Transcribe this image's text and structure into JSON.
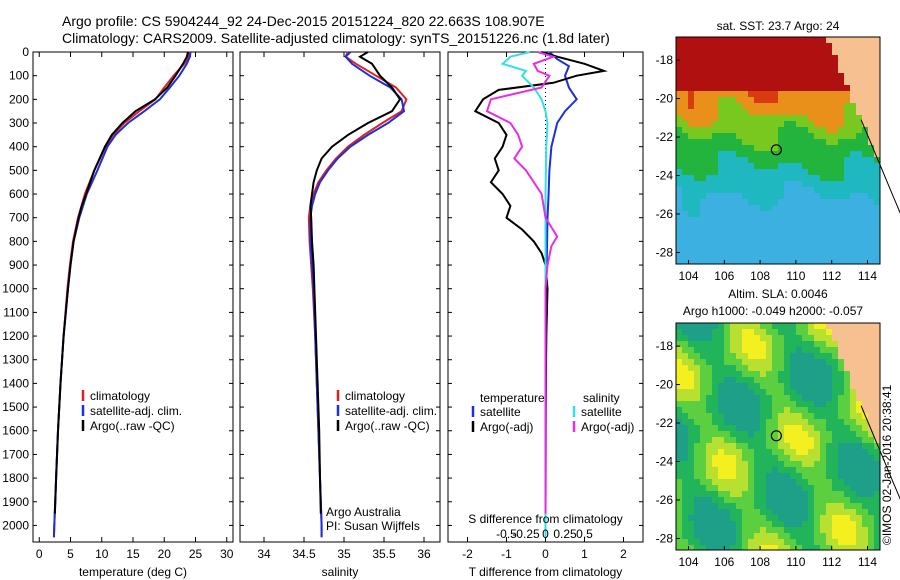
{
  "header": {
    "line1": "Argo profile: CS 5904244_92 24-Dec-2015 20151224_820 22.663S 108.907E",
    "line2": "Climatology: CARS2009. Satellite-adjusted climatology: synTS_20151226.nc (1.8d later)"
  },
  "footer_stamp": "©IMOS 02-Jan-2016 20:38:41",
  "colors": {
    "climatology": "#e02020",
    "satellite": "#1a2fe0",
    "argo": "#000000",
    "sal_satellite": "#33e0e8",
    "sal_argo": "#e62ee6"
  },
  "chart_data": [
    {
      "type": "line",
      "name": "temperature-profile",
      "xlabel": "temperature (deg C)",
      "xlim": [
        -1,
        31
      ],
      "ylim": [
        2070,
        0
      ],
      "xticks": [
        0,
        5,
        10,
        15,
        20,
        25,
        30
      ],
      "xtick_labels": [
        "0",
        "5",
        "10",
        "15",
        "20",
        "25",
        "30"
      ],
      "yticks": [
        0,
        100,
        200,
        300,
        400,
        500,
        600,
        700,
        800,
        900,
        1000,
        1100,
        1200,
        1300,
        1400,
        1500,
        1600,
        1700,
        1800,
        1900,
        2000
      ],
      "ytick_labels": [
        "0",
        "100",
        "200",
        "300",
        "400",
        "500",
        "600",
        "700",
        "800",
        "900",
        "1000",
        "1100",
        "1200",
        "1300",
        "1400",
        "1500",
        "1600",
        "1700",
        "1800",
        "1900",
        "2000"
      ],
      "legend": [
        "climatology",
        "satellite-adj. clim.",
        "Argo(..raw -QC)"
      ],
      "series": [
        {
          "key": "climatology",
          "depth": [
            0,
            20,
            50,
            100,
            150,
            200,
            250,
            300,
            350,
            400,
            500,
            600,
            700,
            800,
            900,
            1000,
            1200,
            1400,
            1600,
            1800,
            2000,
            2050
          ],
          "values": [
            24.0,
            23.9,
            23.2,
            21.5,
            20.0,
            18.6,
            16.0,
            13.6,
            11.8,
            10.6,
            8.8,
            7.3,
            6.2,
            5.4,
            4.9,
            4.5,
            3.9,
            3.4,
            3.0,
            2.7,
            2.4,
            2.35
          ]
        },
        {
          "key": "satellite",
          "depth": [
            0,
            20,
            50,
            100,
            150,
            200,
            250,
            300,
            350,
            400,
            500,
            600,
            700,
            800,
            900,
            1000,
            1200,
            1400,
            1600,
            1800,
            2000,
            2050
          ],
          "values": [
            24.2,
            24.1,
            23.6,
            22.4,
            20.9,
            19.3,
            16.8,
            14.2,
            12.2,
            10.9,
            9.3,
            7.6,
            6.4,
            5.5,
            5.0,
            4.6,
            3.9,
            3.4,
            3.0,
            2.7,
            2.4,
            2.35
          ]
        },
        {
          "key": "argo",
          "depth": [
            0,
            20,
            50,
            100,
            150,
            200,
            250,
            300,
            350,
            400,
            500,
            600,
            650,
            700,
            800,
            900,
            1000,
            1200,
            1400,
            1600,
            1800,
            1950
          ],
          "values": [
            23.8,
            23.6,
            23.0,
            21.8,
            20.5,
            18.5,
            15.4,
            13.3,
            11.6,
            10.5,
            8.8,
            7.5,
            6.8,
            6.3,
            5.5,
            5.0,
            4.6,
            3.9,
            3.4,
            3.0,
            2.7,
            2.5
          ]
        }
      ]
    },
    {
      "type": "line",
      "name": "salinity-profile",
      "xlabel": "salinity",
      "xlim": [
        33.7,
        36.2
      ],
      "ylim": [
        2070,
        0
      ],
      "xticks": [
        34,
        34.5,
        35,
        35.5,
        36
      ],
      "xtick_labels": [
        "34",
        "34.5",
        "35",
        "35.5",
        "36"
      ],
      "legend": [
        "climatology",
        "satellite-adj. clim.",
        "Argo(..raw -QC)"
      ],
      "annotation": [
        "Argo Australia",
        "PI: Susan Wijffels"
      ],
      "series": [
        {
          "key": "climatology",
          "depth": [
            0,
            20,
            50,
            100,
            150,
            200,
            250,
            300,
            350,
            400,
            450,
            500,
            550,
            600,
            650,
            700,
            800,
            900,
            1000,
            1200,
            1400,
            1600,
            1800,
            2000,
            2050
          ],
          "values": [
            35.05,
            35.02,
            35.15,
            35.4,
            35.65,
            35.78,
            35.72,
            35.48,
            35.25,
            35.05,
            34.9,
            34.78,
            34.68,
            34.62,
            34.58,
            34.56,
            34.57,
            34.59,
            34.61,
            34.64,
            34.66,
            34.68,
            34.7,
            34.72,
            34.72
          ]
        },
        {
          "key": "satellite",
          "depth": [
            0,
            20,
            50,
            100,
            150,
            200,
            250,
            300,
            350,
            400,
            450,
            500,
            550,
            600,
            650,
            700,
            800,
            900,
            1000,
            1200,
            1400,
            1600,
            1800,
            2000,
            2050
          ],
          "values": [
            35.08,
            35.02,
            35.1,
            35.32,
            35.58,
            35.72,
            35.75,
            35.55,
            35.3,
            35.08,
            34.92,
            34.8,
            34.7,
            34.64,
            34.6,
            34.58,
            34.58,
            34.6,
            34.62,
            34.64,
            34.66,
            34.68,
            34.7,
            34.72,
            34.72
          ]
        },
        {
          "key": "argo",
          "depth": [
            0,
            20,
            50,
            100,
            150,
            200,
            250,
            300,
            350,
            400,
            450,
            500,
            550,
            600,
            650,
            700,
            800,
            900,
            1000,
            1200,
            1400,
            1600,
            1800,
            1950
          ],
          "values": [
            35.3,
            35.2,
            35.35,
            35.45,
            35.6,
            35.7,
            35.6,
            35.3,
            35.05,
            34.85,
            34.72,
            34.66,
            34.62,
            34.6,
            34.58,
            34.59,
            34.6,
            34.62,
            34.63,
            34.65,
            34.67,
            34.69,
            34.7,
            34.71
          ]
        }
      ]
    },
    {
      "type": "line",
      "name": "difference-profile",
      "xlabel": "T difference from climatology",
      "xlabel_top": "S difference from climatology",
      "xlim": [
        -2.5,
        2.5
      ],
      "xticks": [
        -2,
        -1,
        0,
        1,
        2
      ],
      "xtick_labels": [
        "-2",
        "-1",
        "0",
        "1",
        "2"
      ],
      "xticks_top": [
        -1,
        -0.5,
        0,
        0.5,
        1
      ],
      "xtick_labels_top": [
        "-0.5",
        "-0.25",
        "0",
        "0.25",
        "0.5"
      ],
      "legend_titles": [
        "temperature",
        "salinity"
      ],
      "legend_temperature": [
        "satellite",
        "Argo(-adj)"
      ],
      "legend_salinity": [
        "satellite",
        "Argo(-adj)"
      ],
      "series": [
        {
          "key": "t_satellite",
          "depth": [
            0,
            30,
            60,
            100,
            150,
            200,
            250,
            300,
            400,
            500,
            600,
            700,
            800,
            1000,
            1500,
            2000,
            2050
          ],
          "values": [
            0.1,
            0.3,
            0.6,
            0.5,
            0.6,
            0.8,
            0.5,
            0.3,
            0.15,
            0.1,
            0.08,
            0.05,
            0.04,
            0.02,
            0.01,
            0.0,
            0.0
          ]
        },
        {
          "key": "t_argo",
          "depth": [
            0,
            20,
            50,
            80,
            100,
            130,
            160,
            200,
            250,
            300,
            350,
            400,
            450,
            500,
            550,
            600,
            650,
            700,
            750,
            800,
            850,
            900,
            1000,
            1200,
            1500,
            1800,
            1950
          ],
          "values": [
            -0.1,
            0.3,
            1.0,
            1.5,
            0.8,
            0.2,
            -1.2,
            -1.6,
            -1.8,
            -1.2,
            -1.0,
            -1.1,
            -1.3,
            -1.2,
            -1.4,
            -1.1,
            -0.9,
            -1.0,
            -0.6,
            -0.3,
            -0.1,
            0.0,
            0.05,
            0.02,
            0.0,
            0.0,
            0.0
          ]
        },
        {
          "key": "s_satellite",
          "depth": [
            0,
            20,
            50,
            80,
            100,
            150,
            200,
            250,
            300,
            400,
            600,
            800,
            1000,
            1500,
            2000,
            2050
          ],
          "values": [
            -0.4,
            -0.9,
            -1.1,
            -0.5,
            -0.6,
            -0.3,
            -0.1,
            0.0,
            0.05,
            0.02,
            0.0,
            0.0,
            0.0,
            0.0,
            0.0,
            0.0
          ]
        },
        {
          "key": "s_argo",
          "depth": [
            0,
            20,
            50,
            80,
            100,
            150,
            200,
            250,
            300,
            350,
            400,
            450,
            500,
            550,
            600,
            700,
            780,
            820,
            900,
            1000,
            1200,
            1500,
            1800,
            1950
          ],
          "values": [
            -0.2,
            0.2,
            -0.3,
            -0.2,
            0.1,
            -0.1,
            -1.4,
            -1.5,
            -0.9,
            -0.7,
            -0.6,
            -0.8,
            -0.5,
            -0.3,
            -0.1,
            0.0,
            0.3,
            0.15,
            0.05,
            0.0,
            0.0,
            0.0,
            0.0,
            0.0
          ]
        }
      ]
    },
    {
      "type": "heatmap",
      "name": "sst-map",
      "title": "sat. SST: 23.7 Argo: 24",
      "xlim": [
        103.3,
        114.7
      ],
      "ylim": [
        -28.6,
        -16.8
      ],
      "xticks": [
        104,
        106,
        108,
        110,
        112,
        114
      ],
      "xtick_labels": [
        "104",
        "106",
        "108",
        "110",
        "112",
        "114"
      ],
      "yticks": [
        -18,
        -20,
        -22,
        -24,
        -26,
        -28
      ],
      "ytick_labels": [
        "-18",
        "-20",
        "-22",
        "-24",
        "-26",
        "-28"
      ],
      "marker": [
        108.907,
        -22.663
      ]
    },
    {
      "type": "heatmap",
      "name": "sla-map",
      "title": "Altim. SLA: 0.0046",
      "subtitle": "Argo h1000: -0.049 h2000: -0.057",
      "xlim": [
        103.3,
        114.7
      ],
      "ylim": [
        -28.6,
        -16.8
      ],
      "xticks": [
        104,
        106,
        108,
        110,
        112,
        114
      ],
      "xtick_labels": [
        "104",
        "106",
        "108",
        "110",
        "112",
        "114"
      ],
      "yticks": [
        -18,
        -20,
        -22,
        -24,
        -26,
        -28
      ],
      "ytick_labels": [
        "-18",
        "-20",
        "-22",
        "-24",
        "-26",
        "-28"
      ],
      "marker": [
        108.907,
        -22.663
      ]
    }
  ]
}
